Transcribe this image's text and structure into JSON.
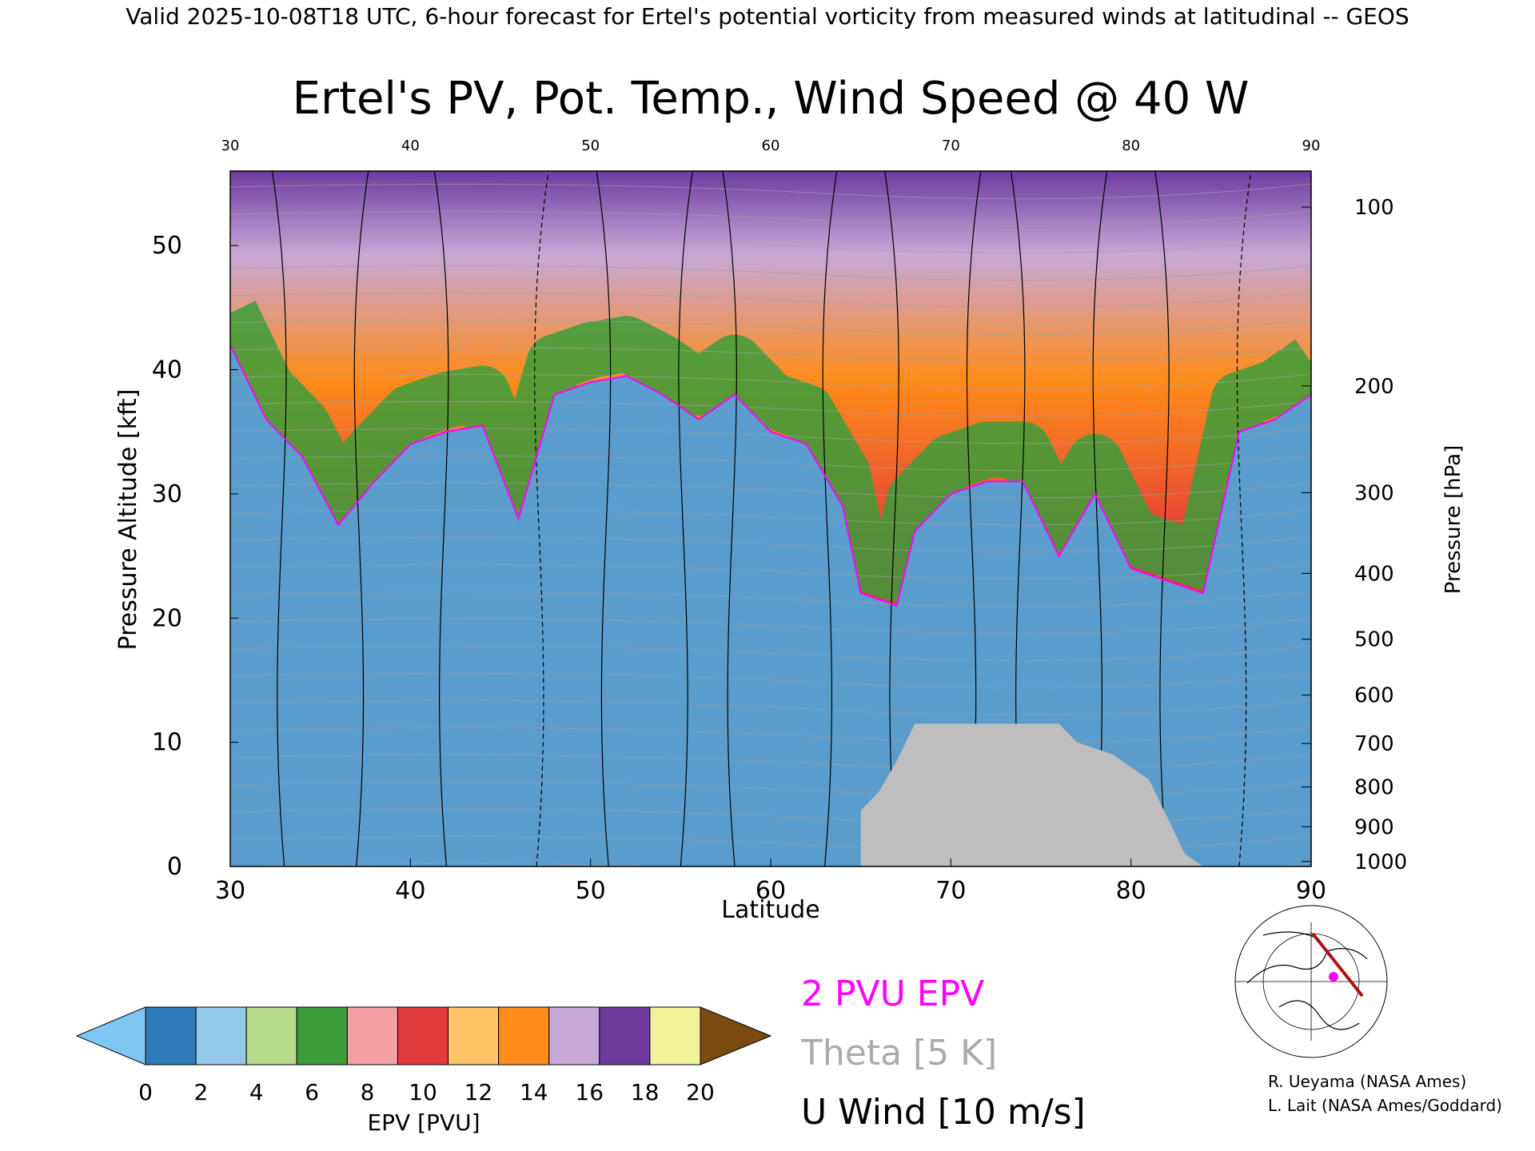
{
  "header": "Valid 2025-10-08T18 UTC, 6-hour forecast for Ertel's potential vorticity from measured winds at latitudinal -- GEOS",
  "chart_data": {
    "type": "heatmap",
    "title": "Ertel's PV, Pot. Temp., Wind Speed @ 40 W",
    "xlabel": "Latitude",
    "ylabel_left": "Pressure Altitude [kft]",
    "ylabel_right": "Pressure [hPa]",
    "xlim": [
      30,
      90
    ],
    "ylim": [
      0,
      56
    ],
    "x_ticks": [
      30,
      40,
      50,
      60,
      70,
      80,
      90
    ],
    "x_tick_labels": [
      "30",
      "40",
      "50",
      "60",
      "70",
      "80",
      "90"
    ],
    "y_ticks": [
      0,
      10,
      20,
      30,
      40,
      50
    ],
    "y_tick_labels": [
      "0",
      "10",
      "20",
      "30",
      "40",
      "50"
    ],
    "pressure_ticks": [
      {
        "hpa": 100,
        "kft": 53.1
      },
      {
        "hpa": 200,
        "kft": 38.7
      },
      {
        "hpa": 300,
        "kft": 30.1
      },
      {
        "hpa": 400,
        "kft": 23.6
      },
      {
        "hpa": 500,
        "kft": 18.3
      },
      {
        "hpa": 600,
        "kft": 13.8
      },
      {
        "hpa": 700,
        "kft": 9.9
      },
      {
        "hpa": 800,
        "kft": 6.4
      },
      {
        "hpa": 900,
        "kft": 3.2
      },
      {
        "hpa": 1000,
        "kft": 0.4
      }
    ],
    "pressure_tick_labels": [
      "100",
      "200",
      "300",
      "400",
      "500",
      "600",
      "700",
      "800",
      "900",
      "1000"
    ],
    "colorbar": {
      "label": "EPV [PVU]",
      "ticks": [
        "0",
        "2",
        "4",
        "6",
        "8",
        "10",
        "12",
        "14",
        "16",
        "18",
        "20"
      ],
      "colors": [
        "#2e7ab8",
        "#92c9e8",
        "#b4dc8a",
        "#3b9e3b",
        "#f4a0a0",
        "#e23a3a",
        "#ffc266",
        "#ff8c1a",
        "#c8a8d8",
        "#6e3a9e",
        "#f3f09a"
      ],
      "under_color": "#7ec7f2",
      "over_color": "#7a4a0e"
    },
    "epv_2pvu_tropopause_kft": [
      {
        "lat": 30,
        "kft": 42
      },
      {
        "lat": 32,
        "kft": 36
      },
      {
        "lat": 34,
        "kft": 33
      },
      {
        "lat": 36,
        "kft": 27.5
      },
      {
        "lat": 38,
        "kft": 31
      },
      {
        "lat": 40,
        "kft": 34
      },
      {
        "lat": 42,
        "kft": 35
      },
      {
        "lat": 44,
        "kft": 35.5
      },
      {
        "lat": 46,
        "kft": 28
      },
      {
        "lat": 48,
        "kft": 38
      },
      {
        "lat": 50,
        "kft": 39
      },
      {
        "lat": 52,
        "kft": 39.5
      },
      {
        "lat": 54,
        "kft": 38
      },
      {
        "lat": 56,
        "kft": 36
      },
      {
        "lat": 58,
        "kft": 38
      },
      {
        "lat": 60,
        "kft": 35
      },
      {
        "lat": 62,
        "kft": 34
      },
      {
        "lat": 64,
        "kft": 29
      },
      {
        "lat": 65,
        "kft": 22
      },
      {
        "lat": 67,
        "kft": 21
      },
      {
        "lat": 68,
        "kft": 27
      },
      {
        "lat": 70,
        "kft": 30
      },
      {
        "lat": 72,
        "kft": 31
      },
      {
        "lat": 74,
        "kft": 31
      },
      {
        "lat": 76,
        "kft": 25
      },
      {
        "lat": 78,
        "kft": 30
      },
      {
        "lat": 80,
        "kft": 24
      },
      {
        "lat": 82,
        "kft": 23
      },
      {
        "lat": 84,
        "kft": 22
      },
      {
        "lat": 86,
        "kft": 35
      },
      {
        "lat": 88,
        "kft": 36
      },
      {
        "lat": 90,
        "kft": 38
      }
    ],
    "surface_kft": [
      {
        "lat": 60,
        "kft": 0
      },
      {
        "lat": 65,
        "kft": 0
      },
      {
        "lat": 65,
        "kft": 4.5
      },
      {
        "lat": 66,
        "kft": 6
      },
      {
        "lat": 67,
        "kft": 8.5
      },
      {
        "lat": 68,
        "kft": 11.5
      },
      {
        "lat": 76,
        "kft": 11.5
      },
      {
        "lat": 77,
        "kft": 10
      },
      {
        "lat": 79,
        "kft": 9
      },
      {
        "lat": 81,
        "kft": 7
      },
      {
        "lat": 82,
        "kft": 4
      },
      {
        "lat": 83,
        "kft": 1
      },
      {
        "lat": 84,
        "kft": 0
      }
    ],
    "legend": [
      {
        "label": "2 PVU EPV",
        "color": "#ff00ff"
      },
      {
        "label": "Theta [5 K]",
        "color": "#aaaaaa"
      },
      {
        "label": "U Wind [10 m/s]",
        "color": "#000000"
      }
    ],
    "credits": [
      "R. Ueyama (NASA Ames)",
      "L. Lait (NASA Ames/Goddard)"
    ]
  }
}
